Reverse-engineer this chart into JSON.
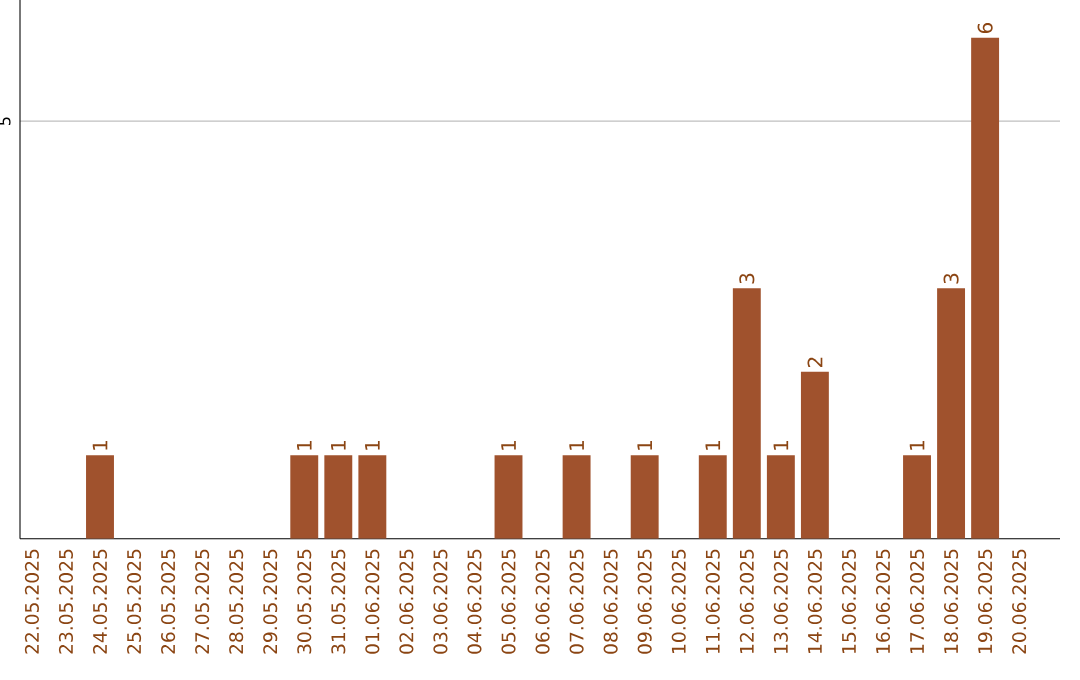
{
  "chart_data": {
    "type": "bar",
    "categories": [
      "22.05.2025",
      "23.05.2025",
      "24.05.2025",
      "25.05.2025",
      "26.05.2025",
      "27.05.2025",
      "28.05.2025",
      "29.05.2025",
      "30.05.2025",
      "31.05.2025",
      "01.06.2025",
      "02.06.2025",
      "03.06.2025",
      "04.06.2025",
      "05.06.2025",
      "06.06.2025",
      "07.06.2025",
      "08.06.2025",
      "09.06.2025",
      "10.06.2025",
      "11.06.2025",
      "12.06.2025",
      "13.06.2025",
      "14.06.2025",
      "15.06.2025",
      "16.06.2025",
      "17.06.2025",
      "18.06.2025",
      "19.06.2025",
      "20.06.2025"
    ],
    "values": [
      0,
      0,
      1,
      0,
      0,
      0,
      0,
      0,
      1,
      1,
      1,
      0,
      0,
      0,
      1,
      0,
      1,
      0,
      1,
      0,
      1,
      3,
      1,
      2,
      0,
      0,
      1,
      3,
      6,
      0
    ],
    "value_labels": [
      null,
      null,
      "1",
      null,
      null,
      null,
      null,
      null,
      "1",
      "1",
      "1",
      null,
      null,
      null,
      "1",
      null,
      "1",
      null,
      "1",
      null,
      "1",
      "3",
      "1",
      "2",
      null,
      null,
      "1",
      "3",
      "6",
      null
    ],
    "color": "#a0522d",
    "ylim": [
      0,
      6.45
    ],
    "yticks": [
      5
    ],
    "grid": "y"
  }
}
